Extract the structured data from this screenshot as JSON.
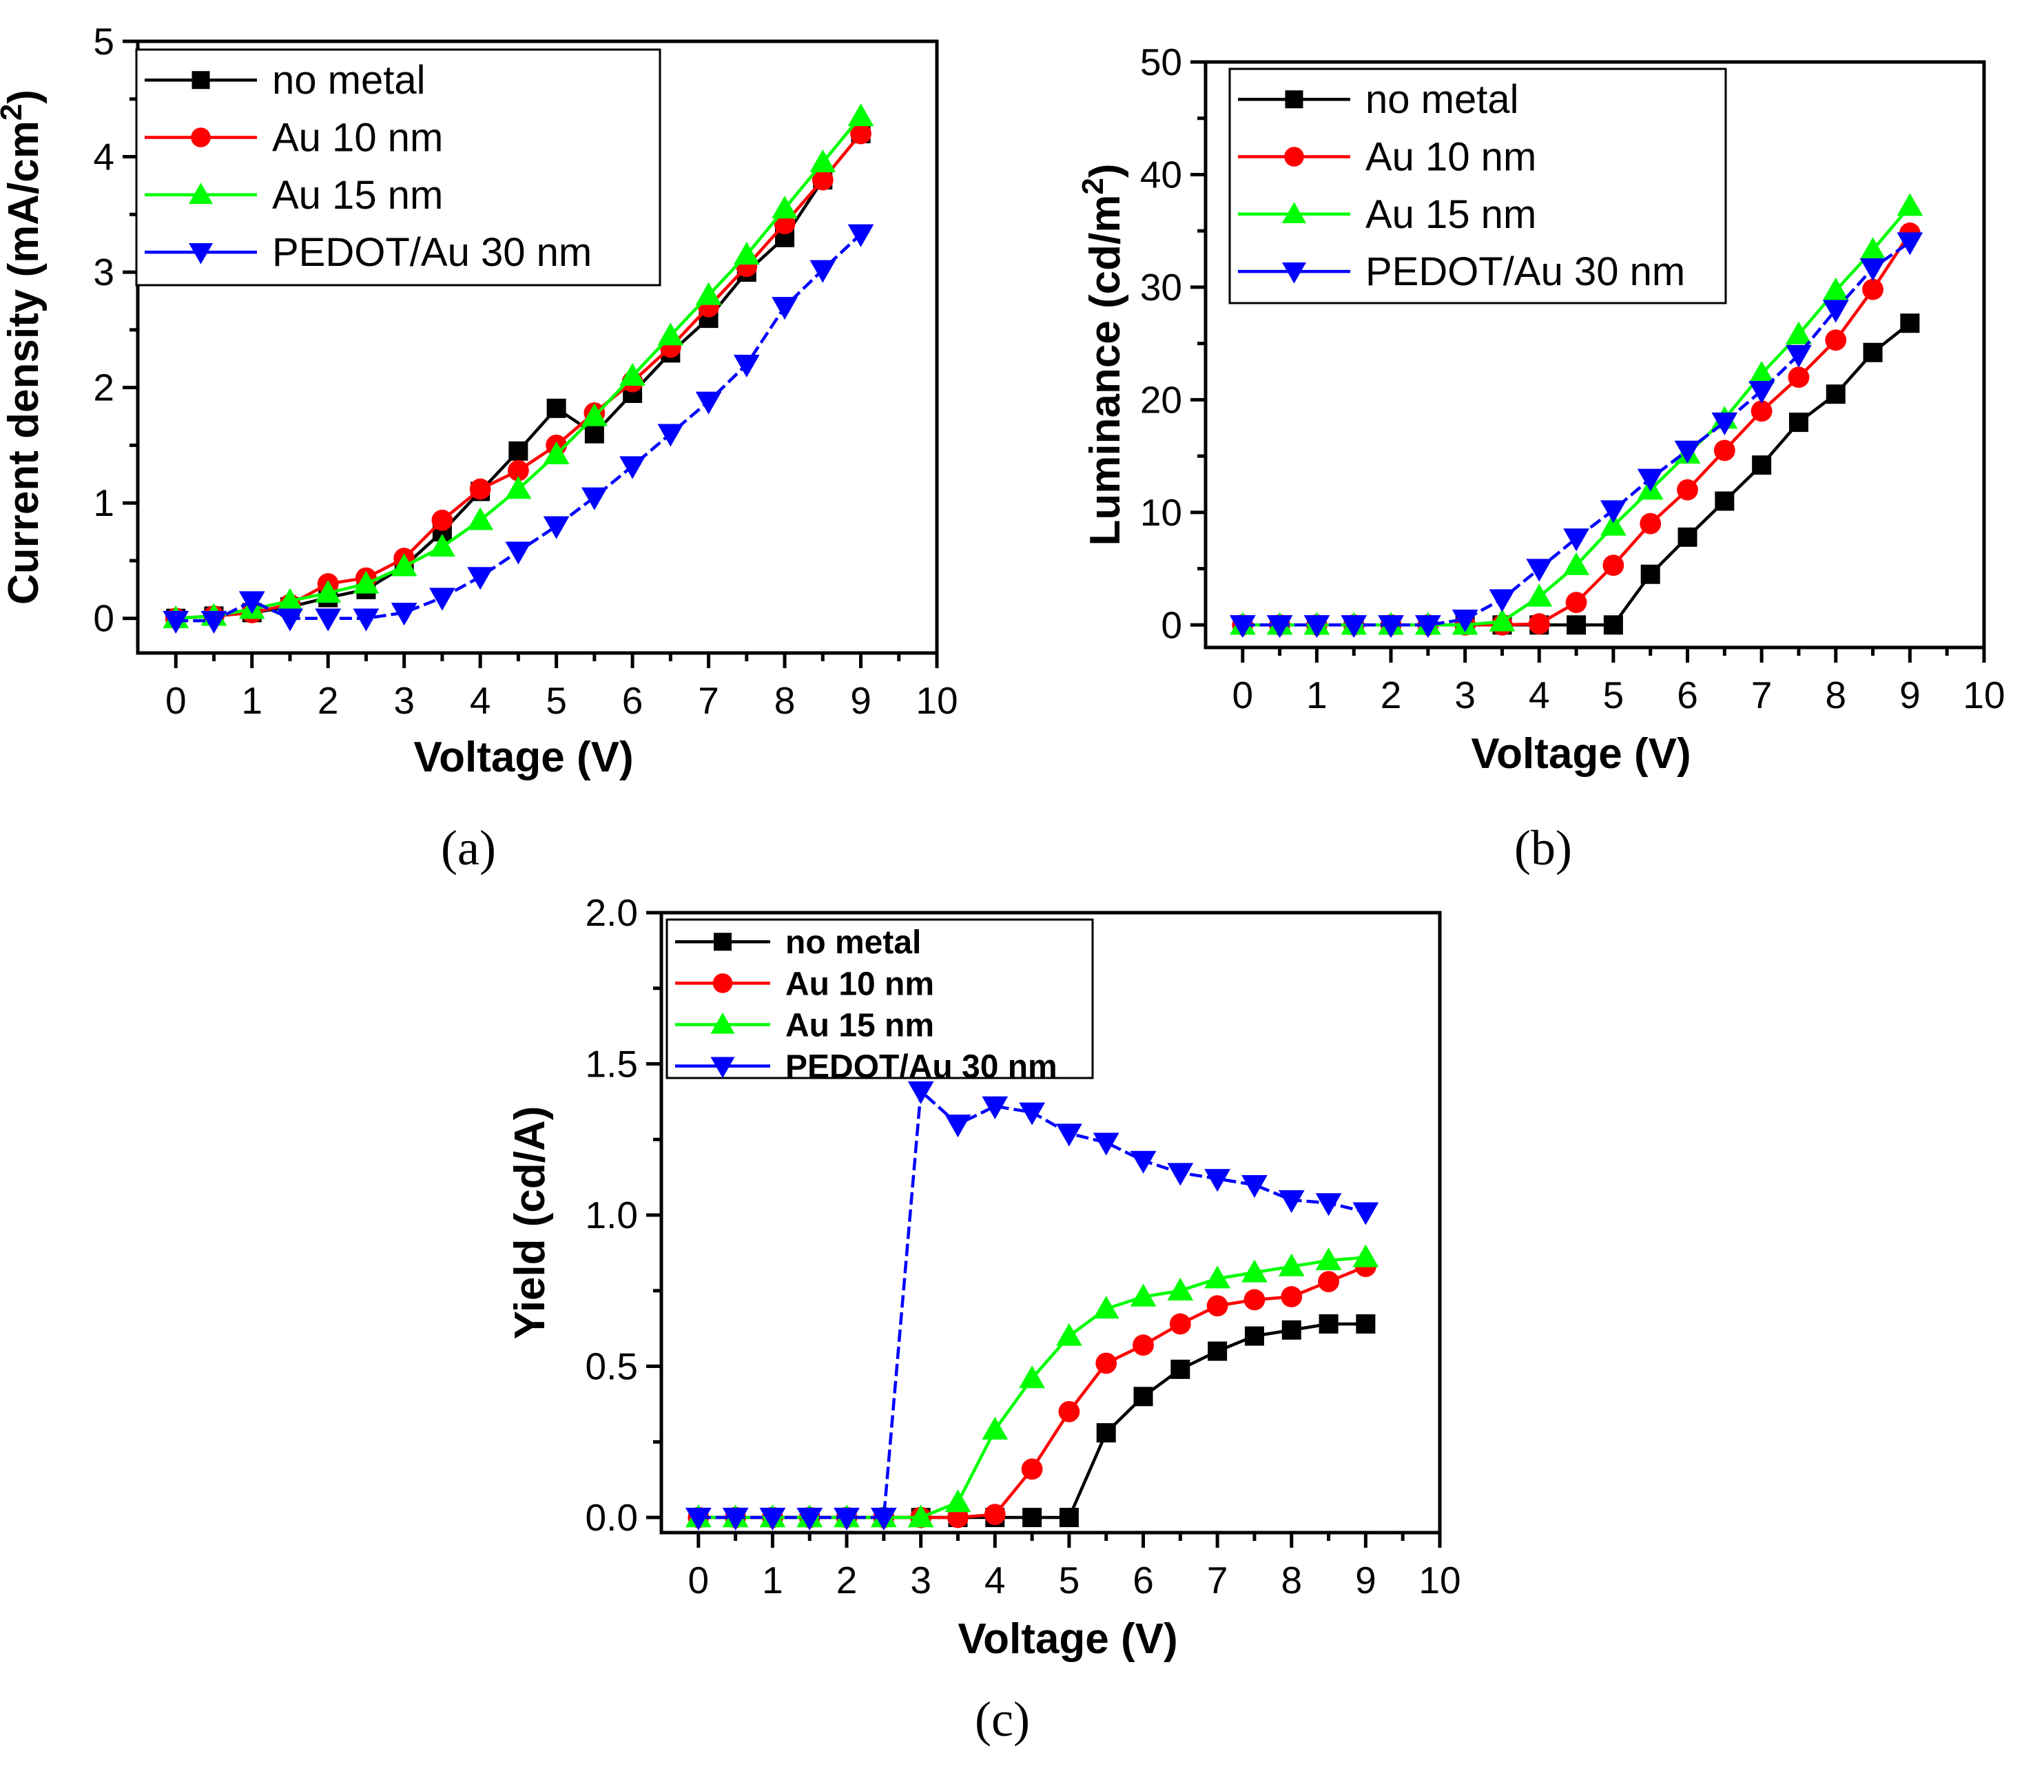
{
  "colors": {
    "no_metal": "#000000",
    "au10": "#ff0000",
    "au15": "#00ff00",
    "pedot": "#0000ff"
  },
  "chart_data": [
    {
      "type": "line",
      "panel": "(a)",
      "xlabel": "Voltage (V)",
      "ylabel_main": "Current density (mA/cm",
      "ylabel_sup": "2",
      "ylabel_end": ")",
      "xlim": [
        -0.5,
        10
      ],
      "ylim": [
        -0.3,
        5
      ],
      "xticks": [
        0,
        1,
        2,
        3,
        4,
        5,
        6,
        7,
        8,
        9,
        10
      ],
      "yticks": [
        0,
        1,
        2,
        3,
        4,
        5
      ],
      "xticklabels": [
        "0",
        "1",
        "2",
        "3",
        "4",
        "5",
        "6",
        "7",
        "8",
        "9",
        "10"
      ],
      "yticklabels": [
        "0",
        "1",
        "2",
        "3",
        "4",
        "5"
      ],
      "legend_position": "top-left",
      "series": [
        {
          "name": "no metal",
          "marker": "square",
          "x": [
            0,
            0.5,
            1,
            1.5,
            2,
            2.5,
            3,
            3.5,
            4,
            4.5,
            5,
            5.5,
            6,
            6.5,
            7,
            7.5,
            8,
            8.5,
            9
          ],
          "y": [
            0,
            0.02,
            0.05,
            0.1,
            0.18,
            0.25,
            0.45,
            0.75,
            1.1,
            1.45,
            1.82,
            1.6,
            1.95,
            2.3,
            2.6,
            3.0,
            3.3,
            3.8,
            4.2
          ]
        },
        {
          "name": "Au 10 nm",
          "marker": "circle",
          "x": [
            0,
            0.5,
            1,
            1.5,
            2,
            2.5,
            3,
            3.5,
            4,
            4.5,
            5,
            5.5,
            6,
            6.5,
            7,
            7.5,
            8,
            8.5,
            9
          ],
          "y": [
            0,
            0.02,
            0.05,
            0.12,
            0.3,
            0.35,
            0.52,
            0.85,
            1.12,
            1.28,
            1.5,
            1.78,
            2.05,
            2.35,
            2.7,
            3.05,
            3.42,
            3.8,
            4.2
          ]
        },
        {
          "name": "Au 15 nm",
          "marker": "triangle-up",
          "x": [
            0,
            0.5,
            1,
            1.5,
            2,
            2.5,
            3,
            3.5,
            4,
            4.5,
            5,
            5.5,
            6,
            6.5,
            7,
            7.5,
            8,
            8.5,
            9
          ],
          "y": [
            0,
            0.02,
            0.08,
            0.15,
            0.22,
            0.3,
            0.45,
            0.62,
            0.85,
            1.12,
            1.42,
            1.75,
            2.1,
            2.45,
            2.8,
            3.15,
            3.55,
            3.95,
            4.35
          ]
        },
        {
          "name": "PEDOT/Au 30 nm",
          "marker": "triangle-down",
          "x": [
            0,
            0.5,
            1,
            1.5,
            2,
            2.5,
            3,
            3.5,
            4,
            4.5,
            5,
            5.5,
            6,
            6.5,
            7,
            7.5,
            8,
            8.5,
            9
          ],
          "y": [
            -0.02,
            -0.02,
            0.15,
            0.0,
            0.0,
            0.0,
            0.05,
            0.18,
            0.36,
            0.58,
            0.8,
            1.05,
            1.32,
            1.6,
            1.88,
            2.2,
            2.7,
            3.02,
            3.33
          ]
        }
      ]
    },
    {
      "type": "line",
      "panel": "(b)",
      "xlabel": "Voltage (V)",
      "ylabel_main": "Luminance (cd/m",
      "ylabel_sup": "2",
      "ylabel_end": ")",
      "xlim": [
        -0.5,
        10
      ],
      "ylim": [
        -2,
        50
      ],
      "xticks": [
        0,
        1,
        2,
        3,
        4,
        5,
        6,
        7,
        8,
        9,
        10
      ],
      "yticks": [
        0,
        10,
        20,
        30,
        40,
        50
      ],
      "xticklabels": [
        "0",
        "1",
        "2",
        "3",
        "4",
        "5",
        "6",
        "7",
        "8",
        "9",
        "10"
      ],
      "yticklabels": [
        "0",
        "10",
        "20",
        "30",
        "40",
        "50"
      ],
      "legend_position": "top-left",
      "series": [
        {
          "name": "no metal",
          "marker": "square",
          "x": [
            0,
            0.5,
            1,
            1.5,
            2,
            2.5,
            3,
            3.5,
            4,
            4.5,
            5,
            5.5,
            6,
            6.5,
            7,
            7.5,
            8,
            8.5,
            9
          ],
          "y": [
            0,
            0,
            0,
            0,
            0,
            0,
            0,
            0,
            0,
            0,
            0,
            4.5,
            7.8,
            11,
            14.2,
            18,
            20.5,
            24.2,
            26.8
          ]
        },
        {
          "name": "Au 10 nm",
          "marker": "circle",
          "x": [
            0,
            0.5,
            1,
            1.5,
            2,
            2.5,
            3,
            3.5,
            4,
            4.5,
            5,
            5.5,
            6,
            6.5,
            7,
            7.5,
            8,
            8.5,
            9
          ],
          "y": [
            0,
            0,
            0,
            0,
            0,
            0,
            0,
            0,
            0.1,
            2,
            5.3,
            9,
            12,
            15.5,
            19,
            22,
            25.3,
            29.8,
            34.8
          ]
        },
        {
          "name": "Au 15 nm",
          "marker": "triangle-up",
          "x": [
            0,
            0.5,
            1,
            1.5,
            2,
            2.5,
            3,
            3.5,
            4,
            4.5,
            5,
            5.5,
            6,
            6.5,
            7,
            7.5,
            8,
            8.5,
            9
          ],
          "y": [
            0,
            0,
            0,
            0,
            0,
            0,
            0,
            0.3,
            2.5,
            5.3,
            8.8,
            12,
            15.2,
            18.3,
            22.3,
            25.8,
            29.7,
            33.3,
            37.2
          ]
        },
        {
          "name": "PEDOT/Au 30 nm",
          "marker": "triangle-down",
          "x": [
            0,
            0.5,
            1,
            1.5,
            2,
            2.5,
            3,
            3.5,
            4,
            4.5,
            5,
            5.5,
            6,
            6.5,
            7,
            7.5,
            8,
            8.5,
            9
          ],
          "y": [
            0,
            0,
            0,
            0,
            0,
            0,
            0.5,
            2.3,
            5,
            7.7,
            10.2,
            13,
            15.5,
            18,
            20.8,
            24,
            28,
            31.7,
            34
          ]
        }
      ]
    },
    {
      "type": "line",
      "panel": "(c)",
      "xlabel": "Voltage (V)",
      "ylabel_main": "Yield (cd/A)",
      "ylabel_sup": "",
      "ylabel_end": "",
      "xlim": [
        -0.5,
        10
      ],
      "ylim": [
        -0.05,
        2.0
      ],
      "xticks": [
        0,
        1,
        2,
        3,
        4,
        5,
        6,
        7,
        8,
        9,
        10
      ],
      "yticks": [
        0.0,
        0.5,
        1.0,
        1.5,
        2.0
      ],
      "xticklabels": [
        "0",
        "1",
        "2",
        "3",
        "4",
        "5",
        "6",
        "7",
        "8",
        "9",
        "10"
      ],
      "yticklabels": [
        "0.0",
        "0.5",
        "1.0",
        "1.5",
        "2.0"
      ],
      "legend_position": "top-left",
      "series": [
        {
          "name": "no metal",
          "marker": "square",
          "x": [
            0,
            0.5,
            1,
            1.5,
            2,
            2.5,
            3,
            3.5,
            4,
            4.5,
            5,
            5.5,
            6,
            6.5,
            7,
            7.5,
            8,
            8.5,
            9
          ],
          "y": [
            0,
            0,
            0,
            0,
            0,
            0,
            0,
            0,
            0,
            0,
            0,
            0.28,
            0.4,
            0.49,
            0.55,
            0.6,
            0.62,
            0.64,
            0.64
          ]
        },
        {
          "name": "Au 10 nm",
          "marker": "circle",
          "x": [
            0,
            0.5,
            1,
            1.5,
            2,
            2.5,
            3,
            3.5,
            4,
            4.5,
            5,
            5.5,
            6,
            6.5,
            7,
            7.5,
            8,
            8.5,
            9
          ],
          "y": [
            0,
            0,
            0,
            0,
            0,
            0,
            0,
            0,
            0.01,
            0.16,
            0.35,
            0.51,
            0.57,
            0.64,
            0.7,
            0.72,
            0.73,
            0.78,
            0.83
          ]
        },
        {
          "name": "Au 15 nm",
          "marker": "triangle-up",
          "x": [
            0,
            0.5,
            1,
            1.5,
            2,
            2.5,
            3,
            3.5,
            4,
            4.5,
            5,
            5.5,
            6,
            6.5,
            7,
            7.5,
            8,
            8.5,
            9
          ],
          "y": [
            0,
            0,
            0,
            0,
            0,
            0,
            0,
            0.05,
            0.29,
            0.46,
            0.6,
            0.69,
            0.73,
            0.75,
            0.79,
            0.81,
            0.83,
            0.85,
            0.86
          ]
        },
        {
          "name": "PEDOT/Au 30 nm",
          "marker": "triangle-down",
          "x": [
            0,
            0.5,
            1,
            1.5,
            2,
            2.5,
            3,
            3.5,
            4,
            4.5,
            5,
            5.5,
            6,
            6.5,
            7,
            7.5,
            8,
            8.5,
            9
          ],
          "y": [
            0,
            0,
            0,
            0,
            0,
            0,
            1.41,
            1.3,
            1.36,
            1.34,
            1.27,
            1.24,
            1.18,
            1.14,
            1.12,
            1.1,
            1.05,
            1.04,
            1.01
          ]
        }
      ]
    }
  ]
}
